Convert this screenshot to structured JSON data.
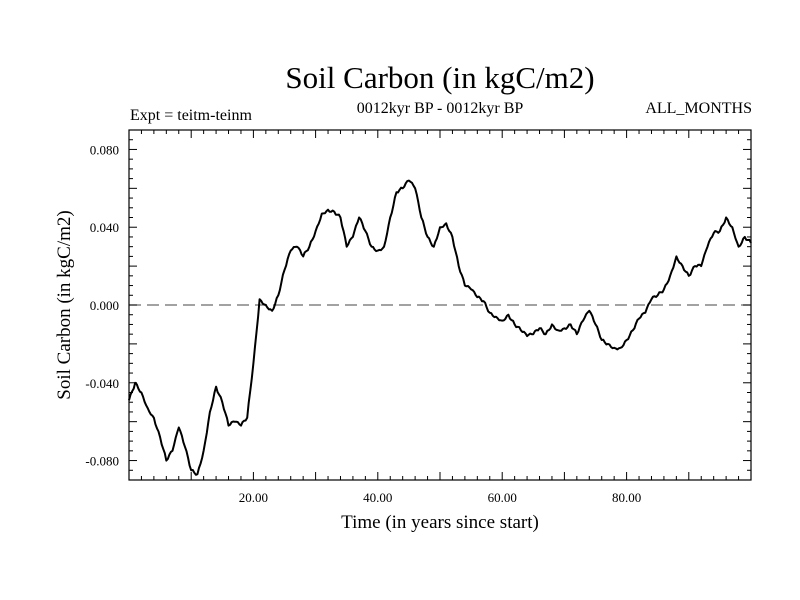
{
  "chart_data": {
    "type": "line",
    "title": "Soil Carbon (in kgC/m2)",
    "subtitle_left": "Expt = teitm-teinm",
    "subtitle_center": "0012kyr BP - 0012kyr BP",
    "subtitle_right": "ALL_MONTHS",
    "xlabel": "Time (in years since start)",
    "ylabel": "Soil Carbon (in kgC/m2)",
    "xlim": [
      0,
      100
    ],
    "ylim": [
      -0.09,
      0.09
    ],
    "xticks": [
      20,
      40,
      60,
      80
    ],
    "xtick_labels": [
      "20.00",
      "40.00",
      "60.00",
      "80.00"
    ],
    "yticks": [
      0.08,
      0.04,
      0.0,
      -0.04,
      -0.08
    ],
    "ytick_labels": [
      "0.080",
      "0.040",
      "0.000",
      "-0.040",
      "-0.080"
    ],
    "reference_line": {
      "y": 0.0,
      "style": "dashed"
    },
    "series": [
      {
        "name": "teitm-teinm",
        "x": [
          0,
          1,
          2,
          3,
          4,
          5,
          6,
          7,
          8,
          9,
          10,
          11,
          12,
          13,
          14,
          15,
          16,
          17,
          18,
          19,
          20,
          21,
          22,
          23,
          24,
          25,
          26,
          27,
          28,
          29,
          30,
          31,
          32,
          33,
          34,
          35,
          36,
          37,
          38,
          39,
          40,
          41,
          42,
          43,
          44,
          45,
          46,
          47,
          48,
          49,
          50,
          51,
          52,
          53,
          54,
          55,
          56,
          57,
          58,
          59,
          60,
          61,
          62,
          63,
          64,
          65,
          66,
          67,
          68,
          69,
          70,
          71,
          72,
          73,
          74,
          75,
          76,
          77,
          78,
          79,
          80,
          81,
          82,
          83,
          84,
          85,
          86,
          87,
          88,
          89,
          90,
          91,
          92,
          93,
          94,
          95,
          96,
          97,
          98,
          99,
          100
        ],
        "values": [
          -0.049,
          -0.04,
          -0.045,
          -0.053,
          -0.058,
          -0.068,
          -0.08,
          -0.075,
          -0.063,
          -0.073,
          -0.085,
          -0.087,
          -0.075,
          -0.055,
          -0.042,
          -0.05,
          -0.062,
          -0.06,
          -0.062,
          -0.058,
          -0.03,
          0.003,
          0.0,
          -0.003,
          0.005,
          0.018,
          0.028,
          0.03,
          0.025,
          0.03,
          0.038,
          0.047,
          0.049,
          0.048,
          0.045,
          0.03,
          0.035,
          0.045,
          0.038,
          0.03,
          0.028,
          0.03,
          0.045,
          0.058,
          0.06,
          0.064,
          0.06,
          0.045,
          0.035,
          0.03,
          0.04,
          0.042,
          0.035,
          0.02,
          0.01,
          0.008,
          0.004,
          0.002,
          -0.004,
          -0.006,
          -0.008,
          -0.005,
          -0.01,
          -0.013,
          -0.016,
          -0.015,
          -0.012,
          -0.015,
          -0.01,
          -0.013,
          -0.012,
          -0.01,
          -0.015,
          -0.008,
          -0.003,
          -0.01,
          -0.018,
          -0.02,
          -0.022,
          -0.022,
          -0.018,
          -0.013,
          -0.007,
          -0.004,
          0.003,
          0.005,
          0.008,
          0.015,
          0.025,
          0.02,
          0.015,
          0.02,
          0.02,
          0.03,
          0.037,
          0.038,
          0.045,
          0.04,
          0.03,
          0.035,
          0.032
        ]
      }
    ]
  }
}
